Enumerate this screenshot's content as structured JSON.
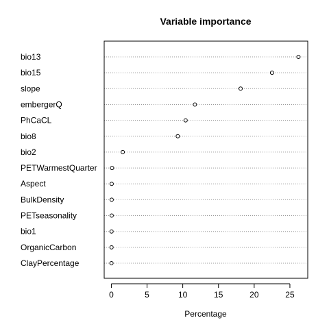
{
  "chart_data": {
    "type": "scatter",
    "title": "Variable importance",
    "xlabel": "Percentage",
    "ylabel": "",
    "xlim": [
      -1,
      27.5
    ],
    "xticks": [
      0,
      5,
      10,
      15,
      20,
      25
    ],
    "grid": "dotted horizontal",
    "series": [
      {
        "points": [
          {
            "label": "bio13",
            "value": 26.2
          },
          {
            "label": "bio15",
            "value": 22.5
          },
          {
            "label": "slope",
            "value": 18.1
          },
          {
            "label": "embergerQ",
            "value": 11.7
          },
          {
            "label": "PhCaCL",
            "value": 10.4
          },
          {
            "label": "bio8",
            "value": 9.3
          },
          {
            "label": "bio2",
            "value": 1.6
          },
          {
            "label": "PETWarmestQuarter",
            "value": 0.1
          },
          {
            "label": "Aspect",
            "value": 0.05
          },
          {
            "label": "BulkDensity",
            "value": 0.05
          },
          {
            "label": "PETseasonality",
            "value": 0.05
          },
          {
            "label": "bio1",
            "value": 0.03
          },
          {
            "label": "OrganicCarbon",
            "value": 0.03
          },
          {
            "label": "ClayPercentage",
            "value": 0.02
          }
        ]
      }
    ]
  }
}
